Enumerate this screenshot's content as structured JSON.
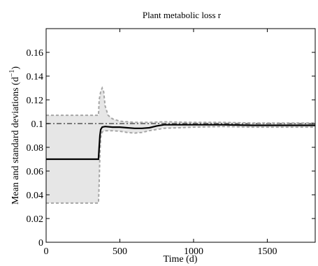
{
  "chart_data": {
    "type": "line",
    "title": "Plant metabolic loss r",
    "xlabel": "Time (d)",
    "ylabel": "Mean and standard deviations (d",
    "ylabel_sup": "−1",
    "ylabel_close": ")",
    "xlim": [
      0,
      1825
    ],
    "ylim": [
      0,
      0.18
    ],
    "x_ticks": [
      0,
      500,
      1000,
      1500
    ],
    "x_tick_labels": [
      "0",
      "500",
      "1000",
      "1500"
    ],
    "y_ticks": [
      0,
      0.02,
      0.04,
      0.06,
      0.08,
      0.1,
      0.12,
      0.14,
      0.16
    ],
    "y_tick_labels": [
      "0",
      "0.02",
      "0.04",
      "0.06",
      "0.08",
      "0.1",
      "0.12",
      "0.14",
      "0.16"
    ],
    "grid": false,
    "colors": {
      "mean": "#000000",
      "true_value": "#555555",
      "std_band_fill": "#e6e6e6",
      "std_band_edge": "#a6a6a6"
    },
    "series": [
      {
        "role": "true-value",
        "style": "dash-dot",
        "x": [
          0,
          1825
        ],
        "values": [
          0.1,
          0.1
        ]
      },
      {
        "role": "mean",
        "style": "solid",
        "x": [
          0,
          355,
          360,
          365,
          370,
          380,
          400,
          450,
          500,
          550,
          600,
          650,
          700,
          750,
          800,
          900,
          1000,
          1200,
          1400,
          1600,
          1825
        ],
        "values": [
          0.07,
          0.07,
          0.08,
          0.09,
          0.095,
          0.097,
          0.0975,
          0.097,
          0.097,
          0.0965,
          0.096,
          0.096,
          0.0965,
          0.098,
          0.099,
          0.099,
          0.099,
          0.099,
          0.0985,
          0.0985,
          0.0985
        ]
      },
      {
        "role": "upper-std",
        "style": "dashed",
        "x": [
          0,
          355,
          360,
          370,
          380,
          390,
          400,
          420,
          450,
          500,
          550,
          600,
          700,
          800,
          1000,
          1200,
          1400,
          1600,
          1825
        ],
        "values": [
          0.107,
          0.107,
          0.12,
          0.127,
          0.13,
          0.127,
          0.115,
          0.107,
          0.104,
          0.102,
          0.1015,
          0.101,
          0.101,
          0.1015,
          0.101,
          0.101,
          0.1005,
          0.1005,
          0.1005
        ]
      },
      {
        "role": "lower-std",
        "style": "dashed",
        "x": [
          0,
          355,
          360,
          365,
          370,
          380,
          400,
          450,
          500,
          550,
          600,
          650,
          700,
          800,
          1000,
          1200,
          1400,
          1600,
          1825
        ],
        "values": [
          0.033,
          0.033,
          0.05,
          0.075,
          0.088,
          0.093,
          0.094,
          0.094,
          0.0935,
          0.0925,
          0.092,
          0.0925,
          0.094,
          0.096,
          0.097,
          0.0975,
          0.097,
          0.097,
          0.097
        ]
      }
    ]
  }
}
